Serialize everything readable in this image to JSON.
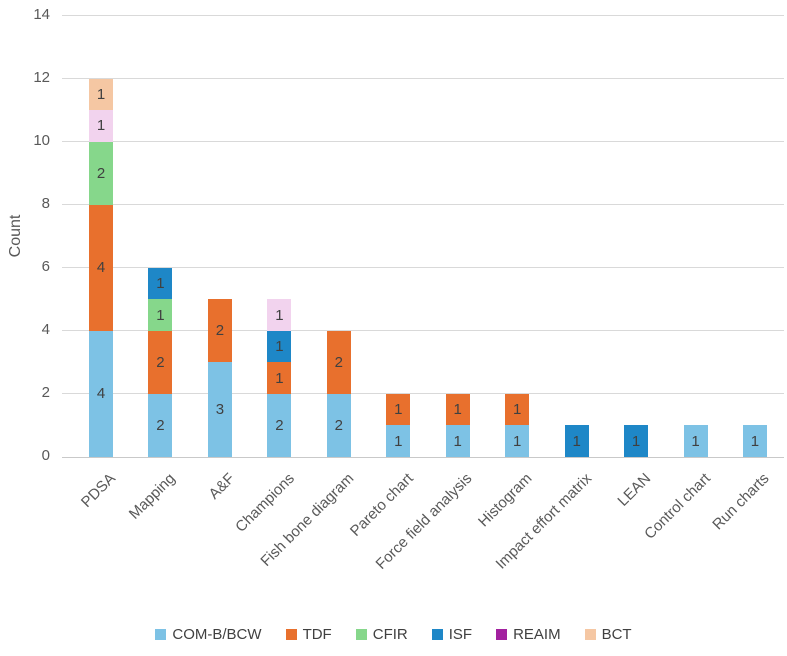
{
  "chart_data": {
    "type": "bar",
    "stacked": true,
    "title": "",
    "xlabel": "",
    "ylabel": "Count",
    "ylim": [
      0,
      14
    ],
    "yticks": [
      0,
      2,
      4,
      6,
      8,
      10,
      12,
      14
    ],
    "grid": true,
    "grid_color": "#d9d9d9",
    "axis_line_color": "#c9c9c9",
    "tick_text_color": "#595959",
    "value_label_color": "#404040",
    "legend_position": "bottom",
    "categories": [
      "PDSA",
      "Mapping",
      "A&F",
      "Champions",
      "Fish bone diagram",
      "Pareto chart",
      "Force field analysis",
      "Histogram",
      "Impact effort matrix",
      "LEAN",
      "Control chart",
      "Run charts"
    ],
    "series": [
      {
        "name": "COM-B/BCW",
        "color": "#7dc2e5",
        "legend_color": "#7dc2e5",
        "values": [
          4,
          2,
          3,
          2,
          2,
          1,
          1,
          1,
          0,
          0,
          1,
          1
        ]
      },
      {
        "name": "TDF",
        "color": "#e8702d",
        "legend_color": "#e8702d",
        "values": [
          4,
          2,
          2,
          1,
          2,
          1,
          1,
          1,
          0,
          0,
          0,
          0
        ]
      },
      {
        "name": "CFIR",
        "color": "#86d78b",
        "legend_color": "#86d78b",
        "values": [
          2,
          1,
          0,
          0,
          0,
          0,
          0,
          0,
          0,
          0,
          0,
          0
        ]
      },
      {
        "name": "ISF",
        "color": "#1e87c7",
        "legend_color": "#1e87c7",
        "values": [
          0,
          1,
          0,
          1,
          0,
          0,
          0,
          0,
          1,
          1,
          0,
          0
        ]
      },
      {
        "name": "REAIM",
        "color": "#f2d3ee",
        "legend_color": "#a2219f",
        "values": [
          1,
          0,
          0,
          1,
          0,
          0,
          0,
          0,
          0,
          0,
          0,
          0
        ]
      },
      {
        "name": "BCT",
        "color": "#f5c7a3",
        "legend_color": "#f5c7a3",
        "values": [
          1,
          0,
          0,
          0,
          0,
          0,
          0,
          0,
          0,
          0,
          0,
          0
        ]
      }
    ]
  }
}
